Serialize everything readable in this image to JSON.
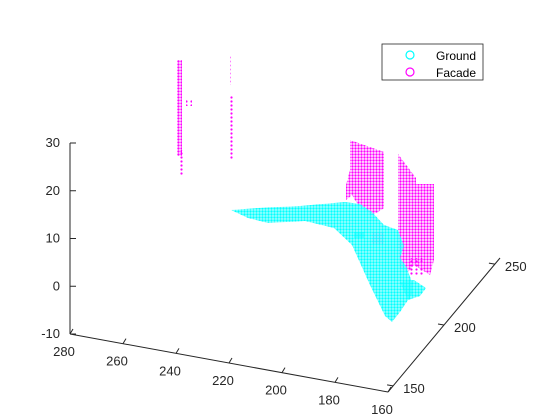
{
  "chart_data": {
    "type": "scatter",
    "projection": "3d",
    "title": "",
    "xlabel": "",
    "ylabel": "",
    "zlabel": "",
    "grid": false,
    "legend": {
      "placement": "top-right"
    },
    "x_axis": {
      "ticks": [
        280,
        260,
        240,
        220,
        200,
        180,
        160
      ],
      "range": [
        160,
        280
      ]
    },
    "y_axis": {
      "ticks": [
        150,
        200,
        250
      ],
      "range": [
        145,
        255
      ]
    },
    "z_axis": {
      "ticks": [
        -10,
        0,
        10,
        20,
        30
      ],
      "range": [
        -10,
        30
      ]
    },
    "series": [
      {
        "name": "Ground",
        "color": "#00ffff",
        "marker": "circle"
      },
      {
        "name": "Facade",
        "color": "#ff00ff",
        "marker": "circle"
      }
    ]
  }
}
